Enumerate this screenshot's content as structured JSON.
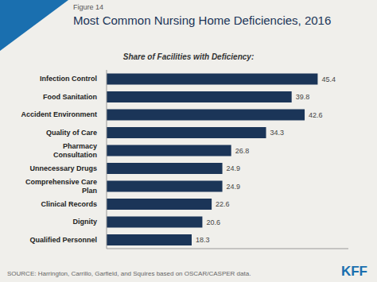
{
  "chart_data": {
    "type": "bar",
    "orientation": "horizontal",
    "title": "Most Common Nursing Home Deficiencies, 2016",
    "subtitle": "Share of Facilities with Deficiency:",
    "annotations": [
      "Figure 14",
      "SOURCE: Harrington, Carrillo, Garfield, and Squires based on OSCAR/CASPER data.",
      "KFF"
    ],
    "categories": [
      "Qualified Personnel",
      "Dignity",
      "Clinical Records",
      "Comprehensive Care\nPlan",
      "Unnecessary Drugs",
      "Pharmacy\nConsultation",
      "Quality of Care",
      "Accident Environment",
      "Food Sanitation",
      "Infection Control"
    ],
    "values": [
      18.3,
      20.6,
      22.6,
      24.9,
      24.9,
      26.8,
      34.3,
      42.6,
      39.8,
      45.4
    ],
    "color": "#1b3558",
    "xlim": [
      0,
      52
    ],
    "grid": false,
    "data_labels": true,
    "tick_labels": "y"
  }
}
